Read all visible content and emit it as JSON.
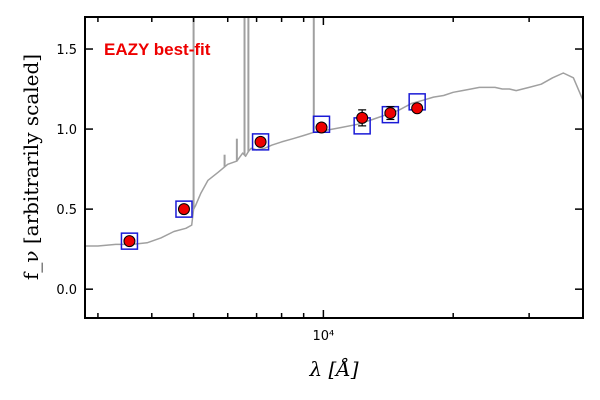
{
  "chart_data": {
    "type": "scatter",
    "title": "",
    "xlabel": "λ [Å]",
    "ylabel": "f_ν [arbitrarily scaled]",
    "xscale": "log",
    "xlim": [
      2800,
      40000
    ],
    "ylim": [
      -0.18,
      1.7
    ],
    "x_tick_labels": [
      {
        "value": 10000,
        "label": "10⁴"
      }
    ],
    "y_ticks": [
      0.0,
      0.5,
      1.0,
      1.5
    ],
    "y_tick_labels": [
      "0.0",
      "0.5",
      "1.0",
      "1.5"
    ],
    "grid": false,
    "annotation": {
      "text": "EAZY best-fit",
      "color": "#ee0000"
    },
    "colors": {
      "model": "#a0a0a0",
      "observed": "#ee0000",
      "observed_edge": "#000000",
      "model_phot": "#1a1ad6"
    },
    "series": [
      {
        "kind": "line",
        "x": [
          2800,
          3000,
          3300,
          3600,
          3900,
          4200,
          4500,
          4800,
          4950,
          5000,
          5050,
          5200,
          5400,
          5700,
          6000,
          6300,
          6500,
          6600,
          6700,
          6800,
          7000,
          7300,
          7600,
          8000,
          8500,
          9000,
          9500,
          10000,
          10500,
          11000,
          12000,
          13000,
          14000,
          15000,
          16000,
          17000,
          18000,
          19000,
          20000,
          21000,
          22000,
          23000,
          24000,
          25000,
          26000,
          27000,
          28000,
          30000,
          32000,
          34000,
          36000,
          38000,
          40000
        ],
        "y": [
          0.27,
          0.27,
          0.28,
          0.28,
          0.29,
          0.32,
          0.36,
          0.38,
          0.4,
          0.5,
          0.52,
          0.6,
          0.68,
          0.73,
          0.78,
          0.8,
          0.85,
          0.83,
          0.86,
          0.88,
          0.87,
          0.88,
          0.9,
          0.92,
          0.94,
          0.96,
          0.98,
          0.99,
          1.0,
          1.01,
          1.03,
          1.06,
          1.09,
          1.12,
          1.16,
          1.18,
          1.2,
          1.21,
          1.23,
          1.24,
          1.25,
          1.26,
          1.26,
          1.26,
          1.25,
          1.25,
          1.24,
          1.26,
          1.28,
          1.32,
          1.35,
          1.32,
          1.18
        ]
      },
      {
        "kind": "points",
        "marker": "filled-circle",
        "x": [
          3550,
          4750,
          7150,
          9900,
          12300,
          14300,
          16500
        ],
        "y": [
          0.3,
          0.5,
          0.92,
          1.01,
          1.07,
          1.1,
          1.13
        ],
        "yerr": [
          0.01,
          0.01,
          0.01,
          0.02,
          0.05,
          0.04,
          0.02
        ]
      },
      {
        "kind": "points",
        "marker": "open-square",
        "x": [
          3550,
          4750,
          7150,
          9900,
          12300,
          14300,
          16500
        ],
        "y": [
          0.3,
          0.5,
          0.92,
          1.03,
          1.02,
          1.09,
          1.17
        ]
      }
    ],
    "emission_lines": [
      {
        "x": 5000,
        "y": 2.0
      },
      {
        "x": 5900,
        "y": 0.84
      },
      {
        "x": 6300,
        "y": 0.94
      },
      {
        "x": 6563,
        "y": 2.0
      },
      {
        "x": 6700,
        "y": 2.0
      },
      {
        "x": 9500,
        "y": 2.0
      }
    ]
  }
}
